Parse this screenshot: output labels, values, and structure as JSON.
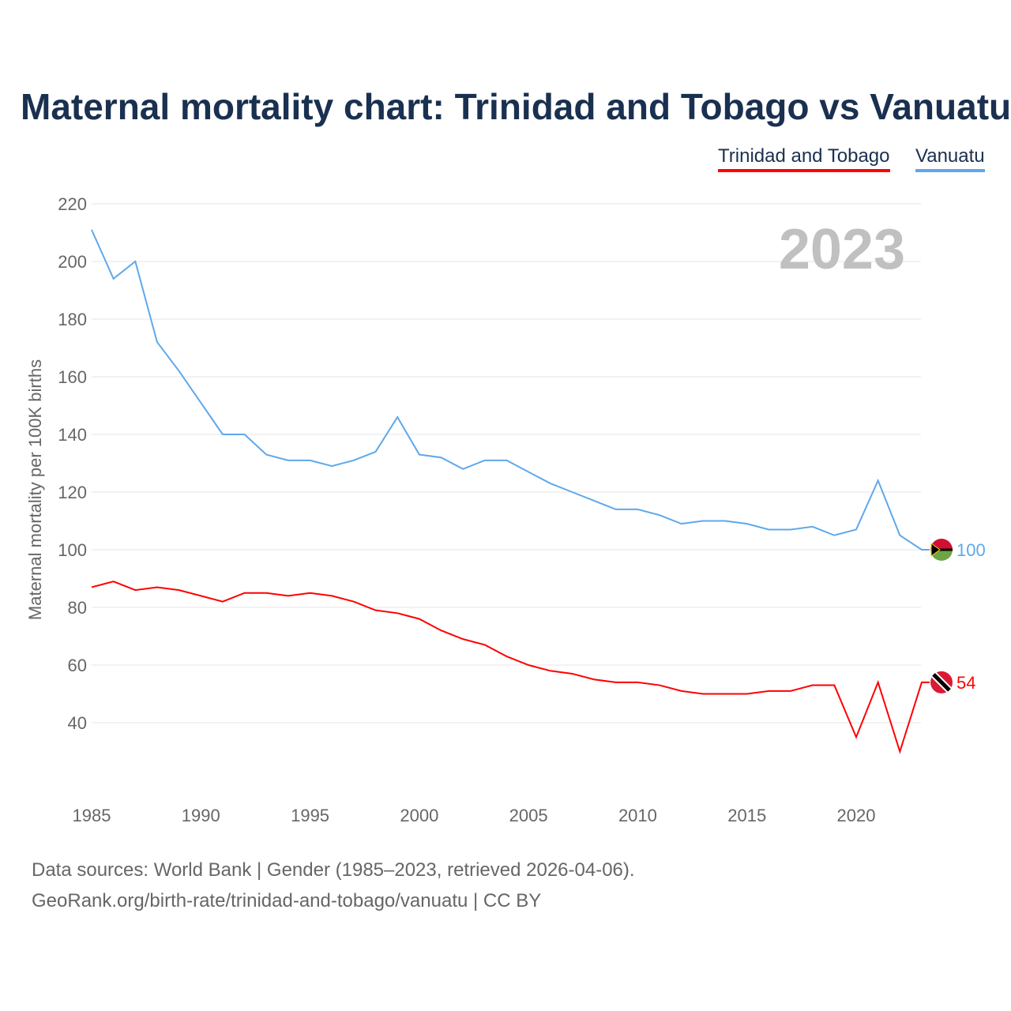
{
  "chart_data": {
    "type": "line",
    "title": "Maternal mortality chart: Trinidad and Tobago vs Vanuatu",
    "ylabel": "Maternal mortality per 100K births",
    "xlabel": "",
    "year_label": "2023",
    "ylim": [
      20,
      220
    ],
    "xlim": [
      1985,
      2023
    ],
    "yticks": [
      40,
      60,
      80,
      100,
      120,
      140,
      160,
      180,
      200,
      220
    ],
    "xticks": [
      1985,
      1990,
      1995,
      2000,
      2005,
      2010,
      2015,
      2020
    ],
    "grid": true,
    "legend_position": "top-right",
    "x": [
      1985,
      1986,
      1987,
      1988,
      1989,
      1990,
      1991,
      1992,
      1993,
      1994,
      1995,
      1996,
      1997,
      1998,
      1999,
      2000,
      2001,
      2002,
      2003,
      2004,
      2005,
      2006,
      2007,
      2008,
      2009,
      2010,
      2011,
      2012,
      2013,
      2014,
      2015,
      2016,
      2017,
      2018,
      2019,
      2020,
      2021,
      2022,
      2023
    ],
    "series": [
      {
        "name": "Trinidad and Tobago",
        "color": "#ff0000",
        "end_label": "54",
        "values": [
          87,
          89,
          86,
          87,
          86,
          84,
          82,
          85,
          85,
          84,
          85,
          84,
          82,
          79,
          78,
          76,
          72,
          69,
          67,
          63,
          60,
          58,
          57,
          55,
          54,
          54,
          53,
          51,
          50,
          50,
          50,
          51,
          51,
          53,
          53,
          35,
          54,
          30,
          54
        ]
      },
      {
        "name": "Vanuatu",
        "color": "#5ea8ec",
        "end_label": "100",
        "values": [
          211,
          194,
          200,
          172,
          162,
          151,
          140,
          140,
          133,
          131,
          131,
          129,
          131,
          134,
          146,
          133,
          132,
          128,
          131,
          131,
          127,
          123,
          120,
          117,
          114,
          114,
          112,
          109,
          110,
          110,
          109,
          107,
          107,
          108,
          105,
          107,
          124,
          105,
          100
        ]
      }
    ]
  },
  "footer": {
    "source": "Data sources: World Bank | Gender (1985–2023, retrieved 2026-04-06).",
    "link": "GeoRank.org/birth-rate/trinidad-and-tobago/vanuatu | CC BY"
  }
}
